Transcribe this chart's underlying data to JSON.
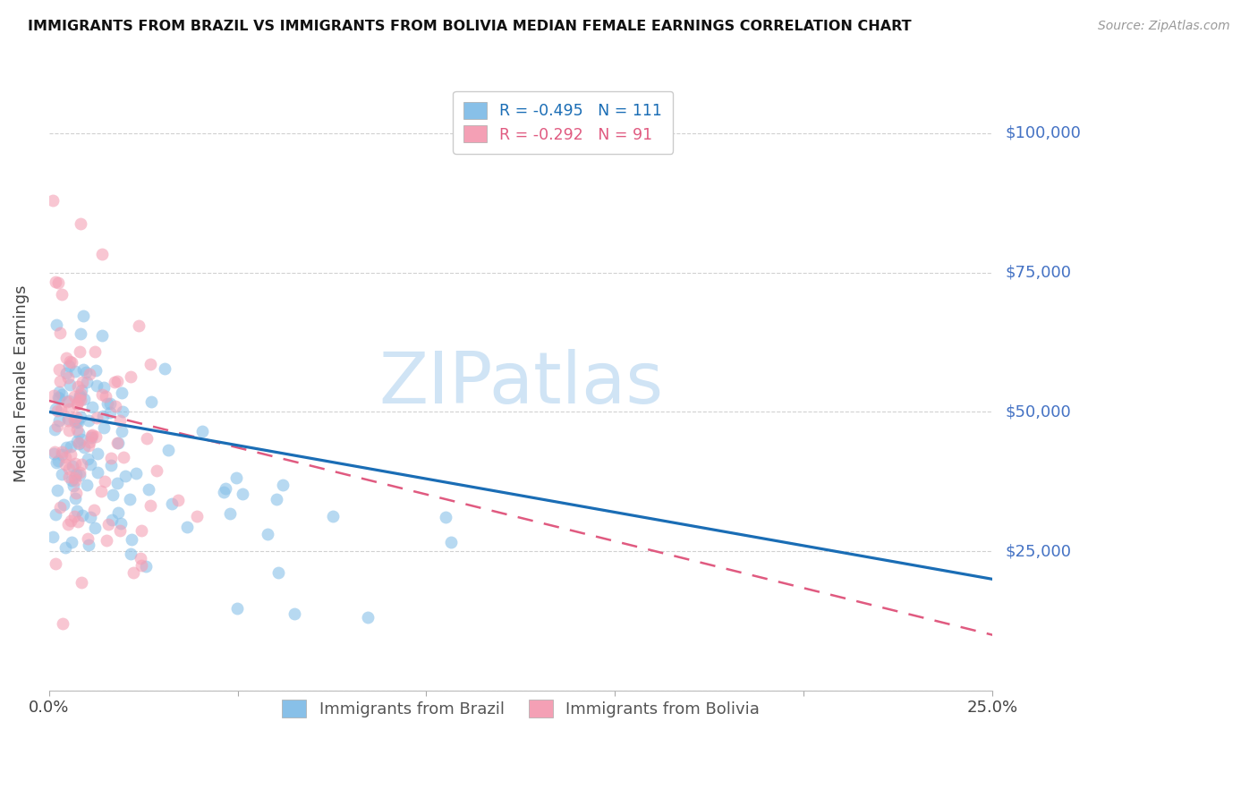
{
  "title": "IMMIGRANTS FROM BRAZIL VS IMMIGRANTS FROM BOLIVIA MEDIAN FEMALE EARNINGS CORRELATION CHART",
  "source": "Source: ZipAtlas.com",
  "ylabel": "Median Female Earnings",
  "xlim": [
    0.0,
    0.25
  ],
  "ylim": [
    0,
    110000
  ],
  "brazil_R": -0.495,
  "brazil_N": 111,
  "bolivia_R": -0.292,
  "bolivia_N": 91,
  "brazil_color": "#88c0e8",
  "bolivia_color": "#f4a0b5",
  "brazil_line_color": "#1a6db5",
  "bolivia_line_color": "#e05a80",
  "scatter_alpha": 0.6,
  "brazil_marker_size": 100,
  "bolivia_marker_size": 100,
  "watermark": "ZIPatlas",
  "watermark_color": "#d0e4f5",
  "background_color": "#ffffff",
  "grid_color": "#cccccc",
  "right_label_color": "#4472c4",
  "title_color": "#111111",
  "source_color": "#999999",
  "brazil_line_x0": 0.0,
  "brazil_line_y0": 50000,
  "brazil_line_x1": 0.25,
  "brazil_line_y1": 20000,
  "bolivia_line_x0": 0.0,
  "bolivia_line_y0": 52000,
  "bolivia_line_x1": 0.25,
  "bolivia_line_y1": 10000
}
